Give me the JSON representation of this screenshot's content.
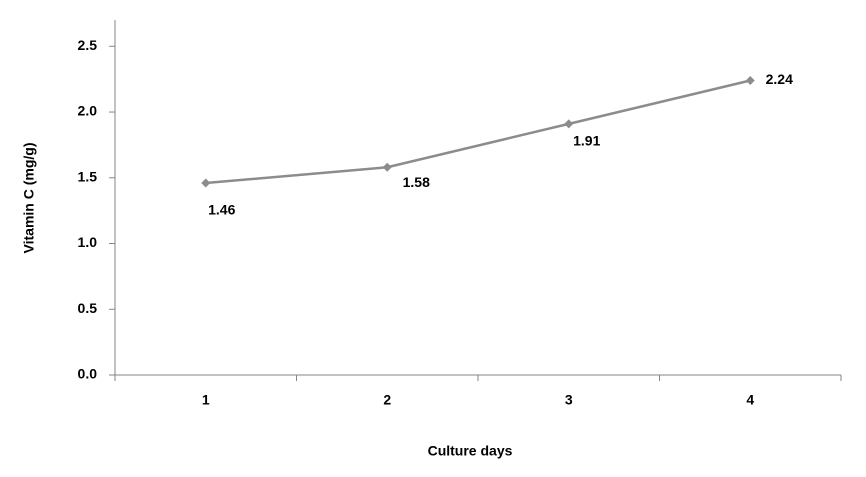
{
  "chart_data": {
    "type": "line",
    "x_label": "Culture days",
    "y_label": "Vitamin C (mg/g)",
    "categories": [
      "1",
      "2",
      "3",
      "4"
    ],
    "series": [
      {
        "name": "Vitamin C",
        "color": "#8c8c8c",
        "values": [
          1.46,
          1.58,
          1.91,
          2.24
        ]
      }
    ],
    "ylim": [
      0,
      2.7
    ],
    "yticks": [
      {
        "value": 0,
        "label": "0.0"
      },
      {
        "value": 0.5,
        "label": "0.5"
      },
      {
        "value": 1,
        "label": "1.0"
      },
      {
        "value": 1.5,
        "label": "1.5"
      },
      {
        "value": 2,
        "label": "2.0"
      },
      {
        "value": 2.5,
        "label": "2.5"
      }
    ],
    "grid": false
  }
}
